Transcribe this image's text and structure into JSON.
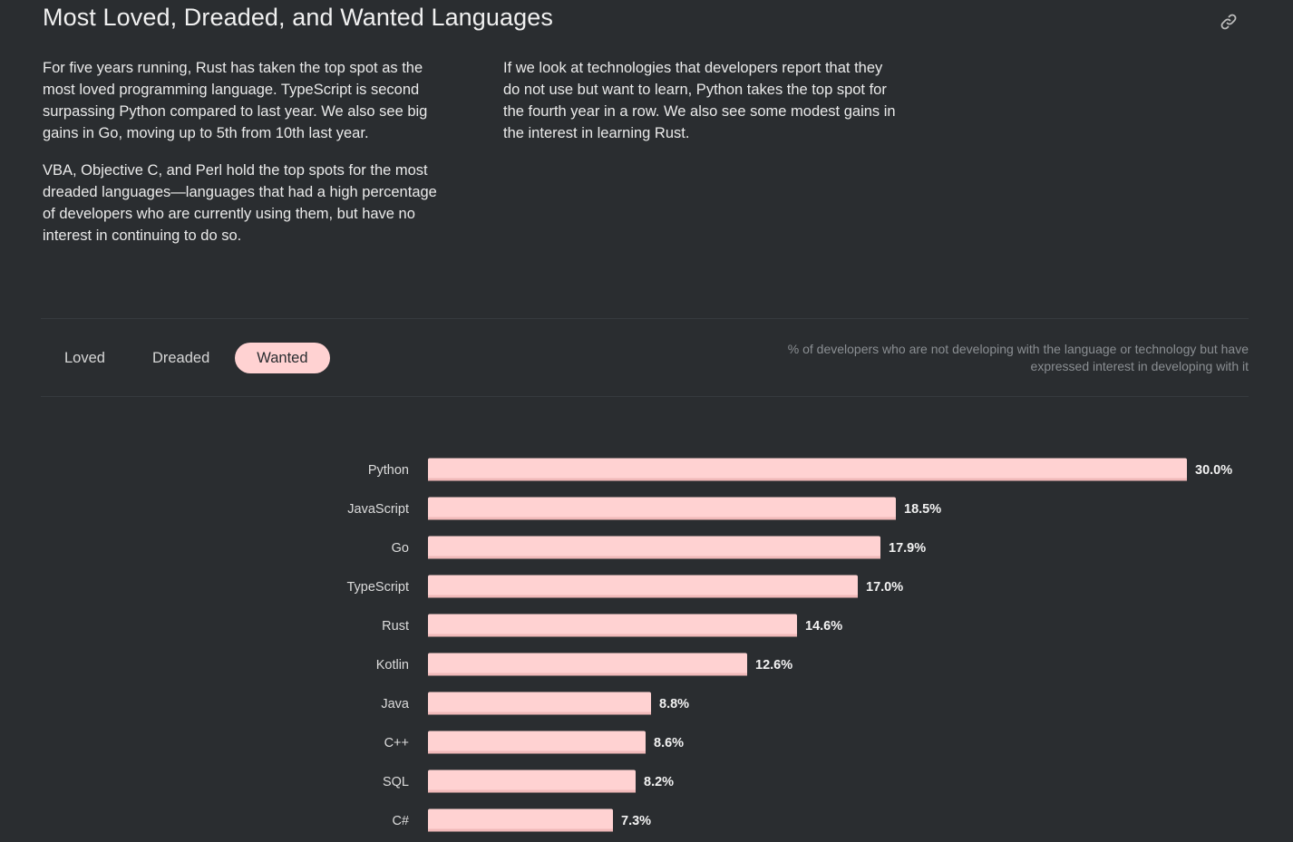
{
  "section": {
    "title": "Most Loved, Dreaded, and Wanted Languages",
    "link_icon": "link-icon",
    "left_paragraphs": [
      "For five years running, Rust has taken the top spot as the most loved programming language. TypeScript is second surpassing Python compared to last year. We also see big gains in Go, moving up to 5th from 10th last year.",
      "VBA, Objective C, and Perl hold the top spots for the most dreaded languages—languages that had a high percentage of developers who are currently using them, but have no interest in continuing to do so."
    ],
    "right_paragraphs": [
      "If we look at technologies that developers report that they do not use but want to learn, Python takes the top spot for the fourth year in a row. We also see some modest gains in the interest in learning Rust."
    ]
  },
  "tabs": [
    {
      "label": "Loved",
      "active": false
    },
    {
      "label": "Dreaded",
      "active": false
    },
    {
      "label": "Wanted",
      "active": true
    }
  ],
  "caption": "% of developers who are not developing with the language or technology but have expressed interest in developing with it",
  "colors": {
    "background": "#2a2d30",
    "bar": "#ffd2d2",
    "bar_shadow": "#f0b9b9",
    "active_tab": "#ffd2d2"
  },
  "chart_data": {
    "type": "bar",
    "orientation": "horizontal",
    "title": "",
    "xlabel": "",
    "ylabel": "",
    "xlim": [
      0,
      30
    ],
    "grid": false,
    "categories": [
      "Python",
      "JavaScript",
      "Go",
      "TypeScript",
      "Rust",
      "Kotlin",
      "Java",
      "C++",
      "SQL",
      "C#"
    ],
    "values": [
      30.0,
      18.5,
      17.9,
      17.0,
      14.6,
      12.6,
      8.8,
      8.6,
      8.2,
      7.3
    ],
    "value_labels": [
      "30.0%",
      "18.5%",
      "17.9%",
      "17.0%",
      "14.6%",
      "12.6%",
      "8.8%",
      "8.6%",
      "8.2%",
      "7.3%"
    ]
  }
}
